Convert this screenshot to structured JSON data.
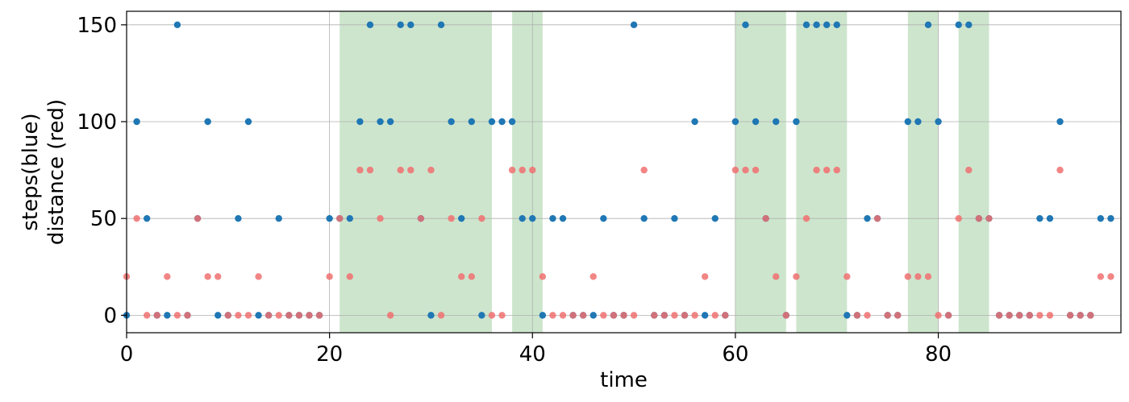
{
  "chart_data": {
    "type": "scatter",
    "xlabel": "time",
    "ylabel_lines": [
      "steps(blue)",
      "distance (red)"
    ],
    "xlim": [
      0,
      98
    ],
    "ylim": [
      -9,
      157
    ],
    "x_ticks": [
      0,
      20,
      40,
      60,
      80
    ],
    "y_ticks": [
      0,
      50,
      100,
      150
    ],
    "grid": true,
    "shaded_regions": {
      "color": "#cde5cd",
      "ranges": [
        [
          21,
          36
        ],
        [
          38,
          41
        ],
        [
          60,
          65
        ],
        [
          66,
          71
        ],
        [
          77,
          80
        ],
        [
          82,
          85
        ]
      ]
    },
    "series": [
      {
        "color": "#1f77b4",
        "x": [
          0,
          1,
          2,
          3,
          4,
          5,
          6,
          7,
          8,
          9,
          10,
          11,
          12,
          13,
          14,
          15,
          16,
          17,
          18,
          19,
          20,
          21,
          22,
          23,
          24,
          25,
          26,
          27,
          28,
          29,
          30,
          31,
          32,
          33,
          34,
          35,
          36,
          37,
          38,
          39,
          40,
          41,
          42,
          43,
          44,
          45,
          46,
          47,
          48,
          49,
          50,
          51,
          52,
          53,
          54,
          55,
          56,
          57,
          58,
          59,
          60,
          61,
          62,
          63,
          64,
          65,
          66,
          67,
          68,
          69,
          70,
          71,
          72,
          73,
          74,
          75,
          76,
          77,
          78,
          79,
          80,
          81,
          82,
          83,
          84,
          85,
          86,
          87,
          88,
          89,
          90,
          91,
          92,
          93,
          94,
          95,
          96,
          97
        ],
        "y": [
          0,
          100,
          50,
          0,
          0,
          150,
          0,
          50,
          100,
          0,
          0,
          50,
          100,
          0,
          0,
          50,
          0,
          0,
          0,
          0,
          50,
          50,
          50,
          100,
          150,
          100,
          100,
          150,
          150,
          50,
          0,
          150,
          100,
          50,
          100,
          0,
          100,
          100,
          100,
          50,
          50,
          0,
          50,
          50,
          0,
          0,
          0,
          50,
          0,
          0,
          150,
          50,
          0,
          0,
          50,
          0,
          100,
          0,
          50,
          0,
          100,
          150,
          100,
          50,
          100,
          0,
          100,
          150,
          150,
          150,
          150,
          0,
          0,
          50,
          50,
          0,
          0,
          100,
          100,
          150,
          100,
          0,
          150,
          150,
          50,
          50,
          0,
          0,
          0,
          0,
          50,
          50,
          100,
          0,
          0,
          0,
          50,
          50
        ]
      },
      {
        "color": "#f07070",
        "x": [
          0,
          1,
          2,
          3,
          4,
          5,
          6,
          7,
          8,
          9,
          10,
          11,
          12,
          13,
          14,
          15,
          16,
          17,
          18,
          19,
          20,
          21,
          22,
          23,
          24,
          25,
          26,
          27,
          28,
          29,
          30,
          31,
          32,
          33,
          34,
          35,
          36,
          37,
          38,
          39,
          40,
          41,
          42,
          43,
          44,
          45,
          46,
          47,
          48,
          49,
          50,
          51,
          52,
          53,
          54,
          55,
          56,
          57,
          58,
          59,
          60,
          61,
          62,
          63,
          64,
          65,
          66,
          67,
          68,
          69,
          70,
          71,
          72,
          73,
          74,
          75,
          76,
          77,
          78,
          79,
          80,
          81,
          82,
          83,
          84,
          85,
          86,
          87,
          88,
          89,
          90,
          91,
          92,
          93,
          94,
          95,
          96,
          97
        ],
        "y": [
          20,
          50,
          0,
          0,
          20,
          0,
          0,
          50,
          20,
          20,
          0,
          0,
          0,
          20,
          0,
          0,
          0,
          0,
          0,
          0,
          20,
          50,
          20,
          75,
          75,
          50,
          0,
          75,
          75,
          50,
          75,
          0,
          50,
          20,
          20,
          50,
          0,
          0,
          75,
          75,
          75,
          20,
          0,
          0,
          0,
          0,
          20,
          0,
          0,
          0,
          0,
          75,
          0,
          0,
          0,
          0,
          0,
          20,
          0,
          0,
          75,
          75,
          75,
          50,
          20,
          0,
          20,
          50,
          75,
          75,
          75,
          20,
          0,
          0,
          50,
          0,
          0,
          20,
          20,
          20,
          0,
          0,
          50,
          75,
          50,
          50,
          0,
          0,
          0,
          0,
          0,
          0,
          75,
          0,
          0,
          0,
          20,
          20
        ]
      }
    ]
  }
}
